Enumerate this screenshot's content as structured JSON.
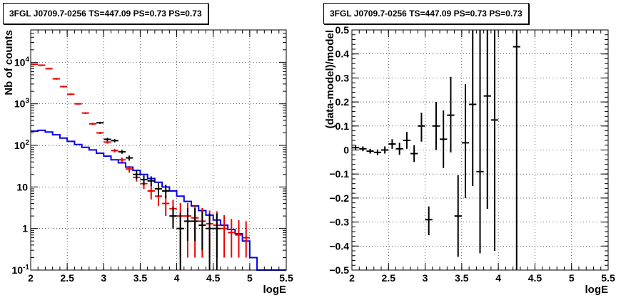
{
  "chart_data": [
    {
      "type": "scatter",
      "title": "3FGL J0709.7-0256 TS=447.09 PS=0.73 PS=0.73",
      "xlabel": "logE",
      "ylabel": "Nb of counts",
      "xlim": [
        2,
        5.5
      ],
      "ylim": [
        0.1,
        60000
      ],
      "yscale": "log",
      "grid": true,
      "xticks": [
        "2",
        "2.5",
        "3",
        "3.5",
        "4",
        "4.5",
        "5",
        "5.5"
      ],
      "yticks": [
        {
          "v": 0.1,
          "label": "10^-1"
        },
        {
          "v": 1,
          "label": "1"
        },
        {
          "v": 10,
          "label": "10"
        },
        {
          "v": 100,
          "label": "10^2"
        },
        {
          "v": 1000,
          "label": "10^3"
        },
        {
          "v": 10000,
          "label": "10^4"
        }
      ],
      "series": [
        {
          "kind": "step",
          "color": "#0000ee",
          "edges": [
            2.0,
            2.1,
            2.2,
            2.3,
            2.4,
            2.5,
            2.6,
            2.7,
            2.8,
            2.9,
            3.0,
            3.1,
            3.2,
            3.3,
            3.4,
            3.5,
            3.6,
            3.7,
            3.8,
            3.9,
            4.0,
            4.1,
            4.2,
            4.3,
            4.4,
            4.5,
            4.6,
            4.7,
            4.8,
            4.9,
            5.0,
            5.1,
            5.2,
            5.3,
            5.4,
            5.5
          ],
          "values": [
            220,
            230,
            210,
            180,
            150,
            125,
            105,
            90,
            78,
            65,
            55,
            45,
            38,
            30,
            25,
            20,
            16,
            13,
            10,
            8,
            6,
            4.5,
            3.5,
            2.7,
            2.1,
            1.6,
            1.2,
            0.95,
            0.75,
            0.5,
            0.2,
            0.1,
            0.1,
            0.1,
            0.1
          ]
        },
        {
          "kind": "errorbar",
          "color": "#ee0000",
          "x": [
            2.05,
            2.15,
            2.25,
            2.35,
            2.45,
            2.55,
            2.65,
            2.75,
            2.85,
            2.95,
            3.05,
            3.15,
            3.25,
            3.35,
            3.45,
            3.55,
            3.65,
            3.75,
            3.85,
            3.95,
            4.05,
            4.15,
            4.25,
            4.35,
            4.45,
            4.55,
            4.65,
            4.75,
            4.85,
            4.95
          ],
          "y": [
            9000,
            8500,
            7000,
            4000,
            2600,
            1700,
            1000,
            600,
            330,
            200,
            120,
            75,
            45,
            27,
            17,
            12,
            8,
            6,
            4,
            3,
            2,
            2,
            1.8,
            1.5,
            1.3,
            1.2,
            1,
            0.8,
            0.7,
            0.6
          ],
          "ylow": [
            8600,
            8100,
            6700,
            3800,
            2480,
            1620,
            950,
            570,
            310,
            188,
            110,
            68,
            39,
            22,
            13.5,
            9,
            5,
            3.5,
            2,
            1.3,
            0.2,
            0.2,
            0.2,
            0.2,
            0.2,
            0.2,
            0.2,
            0.2,
            0.2,
            0.2
          ],
          "yhigh": [
            9400,
            8900,
            7300,
            4200,
            2720,
            1780,
            1050,
            630,
            350,
            212,
            130,
            82,
            51,
            32,
            21,
            15,
            11,
            8.6,
            6.2,
            4.9,
            4.1,
            4.1,
            3.6,
            3.1,
            2.7,
            2.6,
            2.1,
            1.7,
            1.6,
            1.5
          ]
        },
        {
          "kind": "errorbar",
          "color": "#000000",
          "x": [
            2.95,
            3.05,
            3.15,
            3.25,
            3.35,
            3.45,
            3.55,
            3.65,
            3.75,
            3.85,
            3.95,
            4.05,
            4.15,
            4.25,
            4.35,
            4.45,
            4.55
          ],
          "y": [
            350,
            140,
            130,
            70,
            50,
            20,
            15,
            14,
            9,
            8,
            2,
            1,
            1.5,
            1.5,
            1.2,
            1,
            1
          ],
          "ylow": [
            330,
            128,
            118,
            63,
            43,
            15.5,
            11,
            10.5,
            6,
            5.4,
            1,
            0.05,
            0.5,
            0.5,
            0.3,
            0.1,
            0.1
          ],
          "yhigh": [
            370,
            152,
            142,
            78,
            57,
            25,
            19,
            18,
            12.5,
            11.3,
            3.4,
            2.4,
            3.1,
            3.1,
            2.6,
            2.3,
            2.3
          ]
        }
      ]
    },
    {
      "type": "scatter",
      "title": "3FGL J0709.7-0256 TS=447.09 PS=0.73 PS=0.73",
      "xlabel": "logE",
      "ylabel": "(data-model)/model",
      "xlim": [
        2,
        5.5
      ],
      "ylim": [
        -0.5,
        0.5
      ],
      "grid": true,
      "xticks": [
        "2",
        "2.5",
        "3",
        "3.5",
        "4",
        "4.5",
        "5",
        "5.5"
      ],
      "yticks": [
        "-0.5",
        "-0.4",
        "-0.3",
        "-0.2",
        "-0.1",
        "0",
        "0.1",
        "0.2",
        "0.3",
        "0.4",
        "0.5"
      ],
      "series": [
        {
          "kind": "errorbar",
          "color": "#000000",
          "x": [
            2.05,
            2.15,
            2.25,
            2.35,
            2.45,
            2.55,
            2.65,
            2.75,
            2.85,
            2.95,
            3.05,
            3.15,
            3.25,
            3.35,
            3.45,
            3.55,
            3.65,
            3.75,
            3.85,
            3.95,
            4.25
          ],
          "y": [
            0.01,
            0.005,
            -0.005,
            -0.01,
            0.0,
            0.025,
            0.005,
            0.04,
            -0.015,
            0.1,
            -0.29,
            0.1,
            0.045,
            0.145,
            -0.275,
            0.03,
            0.19,
            -0.09,
            0.225,
            0.125,
            0.43
          ],
          "ylow": [
            0.0,
            -0.005,
            -0.015,
            -0.022,
            -0.015,
            0.005,
            -0.02,
            0.005,
            -0.05,
            0.035,
            -0.355,
            0.0,
            -0.075,
            -0.01,
            -0.445,
            -0.2,
            -0.15,
            -0.43,
            -0.245,
            -0.42,
            -0.5
          ],
          "yhigh": [
            0.02,
            0.015,
            0.005,
            0.002,
            0.015,
            0.045,
            0.03,
            0.075,
            0.02,
            0.155,
            -0.235,
            0.2,
            0.165,
            0.305,
            -0.105,
            0.275,
            0.5,
            0.5,
            0.5,
            0.5,
            0.5
          ]
        }
      ]
    }
  ]
}
